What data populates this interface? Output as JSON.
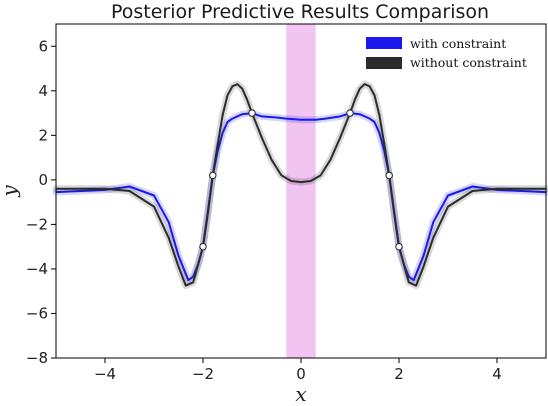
{
  "chart_data": {
    "type": "line",
    "title": "Posterior Predictive Results Comparison",
    "xlabel": "x",
    "ylabel": "y",
    "xlim": [
      -5,
      5
    ],
    "ylim": [
      -8,
      7
    ],
    "xticks": [
      -4,
      -2,
      0,
      2,
      4
    ],
    "yticks": [
      -8,
      -6,
      -4,
      -2,
      0,
      2,
      4,
      6
    ],
    "xtick_labels": [
      "−4",
      "−2",
      "0",
      "2",
      "4"
    ],
    "ytick_labels": [
      "−8",
      "−6",
      "−4",
      "−2",
      "0",
      "2",
      "4",
      "6"
    ],
    "grid": false,
    "legend_position": "top-right",
    "shaded_region": {
      "x": [
        -0.3,
        0.3
      ],
      "color": "#f2c4f2"
    },
    "series": [
      {
        "name": "with constraint",
        "color": "#1a1aee",
        "x": [
          -5.0,
          -4.0,
          -3.5,
          -3.0,
          -2.7,
          -2.5,
          -2.3,
          -2.2,
          -2.1,
          -2.0,
          -1.9,
          -1.8,
          -1.7,
          -1.6,
          -1.5,
          -1.4,
          -1.3,
          -1.2,
          -1.0,
          -0.8,
          -0.5,
          -0.3,
          0.0,
          0.3,
          0.5,
          0.8,
          1.0,
          1.2,
          1.3,
          1.4,
          1.5,
          1.6,
          1.7,
          1.8,
          1.9,
          2.0,
          2.1,
          2.2,
          2.3,
          2.5,
          2.7,
          3.0,
          3.5,
          4.0,
          5.0
        ],
        "y": [
          -0.55,
          -0.45,
          -0.3,
          -0.7,
          -1.9,
          -3.4,
          -4.5,
          -4.35,
          -3.8,
          -3.0,
          -1.4,
          0.2,
          1.3,
          2.1,
          2.6,
          2.75,
          2.85,
          2.95,
          3.0,
          2.85,
          2.8,
          2.75,
          2.7,
          2.7,
          2.75,
          2.85,
          3.0,
          2.95,
          2.85,
          2.75,
          2.6,
          2.1,
          1.3,
          0.2,
          -1.4,
          -3.0,
          -3.8,
          -4.35,
          -4.5,
          -3.4,
          -1.9,
          -0.7,
          -0.3,
          -0.45,
          -0.55
        ]
      },
      {
        "name": "without constraint",
        "color": "#2b2b2b",
        "x": [
          -5.0,
          -4.0,
          -3.5,
          -3.0,
          -2.7,
          -2.5,
          -2.35,
          -2.2,
          -2.0,
          -1.9,
          -1.8,
          -1.7,
          -1.6,
          -1.5,
          -1.4,
          -1.3,
          -1.2,
          -1.1,
          -1.0,
          -0.8,
          -0.6,
          -0.4,
          -0.2,
          0.0,
          0.2,
          0.4,
          0.6,
          0.8,
          1.0,
          1.1,
          1.2,
          1.3,
          1.4,
          1.5,
          1.6,
          1.7,
          1.8,
          1.9,
          2.0,
          2.2,
          2.35,
          2.5,
          2.7,
          3.0,
          3.5,
          4.0,
          5.0
        ],
        "y": [
          -0.4,
          -0.4,
          -0.5,
          -1.2,
          -2.6,
          -3.9,
          -4.75,
          -4.6,
          -3.0,
          -1.5,
          0.2,
          1.6,
          2.9,
          3.8,
          4.2,
          4.3,
          4.1,
          3.6,
          3.0,
          1.9,
          0.9,
          0.2,
          -0.05,
          -0.1,
          -0.05,
          0.2,
          0.9,
          1.9,
          3.0,
          3.6,
          4.1,
          4.3,
          4.2,
          3.8,
          2.9,
          1.6,
          0.2,
          -1.5,
          -3.0,
          -4.6,
          -4.75,
          -3.9,
          -2.6,
          -1.2,
          -0.5,
          -0.4,
          -0.4
        ]
      }
    ],
    "observations": {
      "x": [
        -2.0,
        -1.8,
        -1.0,
        1.0,
        1.8,
        2.0
      ],
      "y": [
        -3.0,
        0.2,
        3.0,
        3.0,
        0.2,
        -3.0
      ]
    }
  }
}
